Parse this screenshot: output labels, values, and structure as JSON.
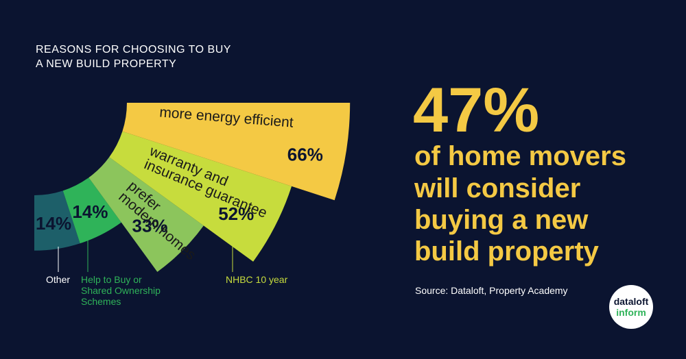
{
  "chart_data": {
    "type": "radial-bar",
    "title": [
      "REASONS FOR CHOOSING TO BUY",
      "A NEW BUILD PROPERTY"
    ],
    "categories": [
      null,
      null,
      [
        "prefer",
        "modern homes"
      ],
      [
        "warranty and",
        "insurance guarantee"
      ],
      [
        "more energy efficient"
      ]
    ],
    "values": [
      14,
      14,
      33,
      52,
      66
    ],
    "value_labels": [
      "14%",
      "14%",
      "33%",
      "52%",
      "66%"
    ],
    "colors": [
      "#1d5f69",
      "#2fb359",
      "#8cc55c",
      "#c7dc3d",
      "#f4c944"
    ],
    "annotations": [
      [
        "Other"
      ],
      [
        "Help to Buy or",
        "Shared Ownership",
        "Schemes"
      ],
      [
        "NHBC 10 year"
      ]
    ]
  },
  "headline": {
    "value": 47,
    "value_label": "47%",
    "text": [
      "of home movers",
      "will consider",
      "buying a new",
      "build property"
    ]
  },
  "source": "Source:  Dataloft, Property Academy",
  "logo": [
    "dataloft",
    "inform"
  ]
}
